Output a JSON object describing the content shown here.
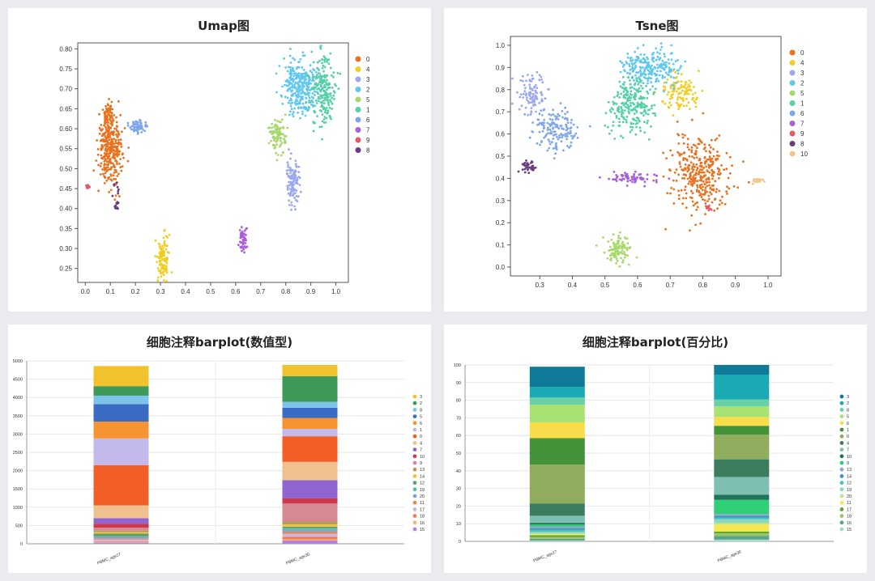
{
  "chart_data": [
    {
      "id": "umap",
      "type": "scatter",
      "title": "Umap图",
      "xlim": [
        -0.03,
        1.05
      ],
      "ylim": [
        0.215,
        0.815
      ],
      "xticks": [
        "0.0",
        "0.1",
        "0.2",
        "0.3",
        "0.4",
        "0.5",
        "0.6",
        "0.7",
        "0.8",
        "0.9",
        "1.0"
      ],
      "yticks": [
        "0.25",
        "0.30",
        "0.35",
        "0.40",
        "0.45",
        "0.50",
        "0.55",
        "0.60",
        "0.65",
        "0.70",
        "0.75",
        "0.80"
      ],
      "legend": [
        "0",
        "4",
        "3",
        "2",
        "5",
        "1",
        "6",
        "7",
        "9",
        "8"
      ],
      "colors": {
        "0": "#e8721f",
        "4": "#f0cd1e",
        "3": "#9aa9ef",
        "2": "#5fc8f0",
        "5": "#a6d86a",
        "1": "#55d0a8",
        "6": "#7fa6e8",
        "7": "#a95fd8",
        "9": "#e45a6a",
        "8": "#6a3d7f"
      },
      "clusters": [
        {
          "name": "0",
          "cx": 0.1,
          "cy": 0.555,
          "sx": 0.022,
          "sy": 0.045,
          "n": 330
        },
        {
          "name": "0",
          "cx": 0.09,
          "cy": 0.635,
          "sx": 0.01,
          "sy": 0.018,
          "n": 50
        },
        {
          "name": "4",
          "cx": 0.31,
          "cy": 0.275,
          "sx": 0.012,
          "sy": 0.03,
          "n": 110
        },
        {
          "name": "3",
          "cx": 0.83,
          "cy": 0.465,
          "sx": 0.013,
          "sy": 0.028,
          "n": 110
        },
        {
          "name": "2",
          "cx": 0.86,
          "cy": 0.705,
          "sx": 0.035,
          "sy": 0.035,
          "n": 290
        },
        {
          "name": "1",
          "cx": 0.95,
          "cy": 0.695,
          "sx": 0.025,
          "sy": 0.04,
          "n": 200
        },
        {
          "name": "5",
          "cx": 0.77,
          "cy": 0.58,
          "sx": 0.02,
          "sy": 0.025,
          "n": 90
        },
        {
          "name": "6",
          "cx": 0.21,
          "cy": 0.605,
          "sx": 0.02,
          "sy": 0.008,
          "n": 55
        },
        {
          "name": "7",
          "cx": 0.63,
          "cy": 0.32,
          "sx": 0.007,
          "sy": 0.014,
          "n": 55
        },
        {
          "name": "9",
          "cx": 0.01,
          "cy": 0.455,
          "sx": 0.006,
          "sy": 0.004,
          "n": 14
        },
        {
          "name": "8",
          "cx": 0.125,
          "cy": 0.43,
          "sx": 0.008,
          "sy": 0.02,
          "n": 18
        }
      ]
    },
    {
      "id": "tsne",
      "type": "scatter",
      "title": "Tsne图",
      "xlim": [
        0.21,
        1.04
      ],
      "ylim": [
        -0.04,
        1.04
      ],
      "xticks": [
        "0.3",
        "0.4",
        "0.5",
        "0.6",
        "0.7",
        "0.8",
        "0.9",
        "1.0"
      ],
      "yticks": [
        "0.0",
        "0.1",
        "0.2",
        "0.3",
        "0.4",
        "0.5",
        "0.6",
        "0.7",
        "0.8",
        "0.9",
        "1.0"
      ],
      "legend": [
        "0",
        "4",
        "3",
        "2",
        "5",
        "1",
        "6",
        "7",
        "9",
        "8",
        "10"
      ],
      "colors": {
        "0": "#e8721f",
        "4": "#f0cd1e",
        "3": "#9aa9ef",
        "2": "#5fc8f0",
        "5": "#a6d86a",
        "1": "#55d0a8",
        "6": "#7fa6e8",
        "7": "#a95fd8",
        "9": "#e45a6a",
        "8": "#6a3d7f",
        "10": "#f4c48a"
      },
      "clusters": [
        {
          "name": "0",
          "cx": 0.79,
          "cy": 0.42,
          "sx": 0.045,
          "sy": 0.08,
          "n": 330
        },
        {
          "name": "4",
          "cx": 0.73,
          "cy": 0.78,
          "sx": 0.03,
          "sy": 0.04,
          "n": 110
        },
        {
          "name": "3",
          "cx": 0.28,
          "cy": 0.78,
          "sx": 0.02,
          "sy": 0.05,
          "n": 90
        },
        {
          "name": "2",
          "cx": 0.64,
          "cy": 0.9,
          "sx": 0.045,
          "sy": 0.04,
          "n": 230
        },
        {
          "name": "5",
          "cx": 0.54,
          "cy": 0.08,
          "sx": 0.02,
          "sy": 0.03,
          "n": 100
        },
        {
          "name": "1",
          "cx": 0.58,
          "cy": 0.73,
          "sx": 0.035,
          "sy": 0.07,
          "n": 240
        },
        {
          "name": "6",
          "cx": 0.35,
          "cy": 0.62,
          "sx": 0.035,
          "sy": 0.05,
          "n": 150
        },
        {
          "name": "7",
          "cx": 0.59,
          "cy": 0.4,
          "sx": 0.04,
          "sy": 0.013,
          "n": 70
        },
        {
          "name": "9",
          "cx": 0.815,
          "cy": 0.27,
          "sx": 0.01,
          "sy": 0.01,
          "n": 12
        },
        {
          "name": "8",
          "cx": 0.265,
          "cy": 0.45,
          "sx": 0.015,
          "sy": 0.02,
          "n": 35
        },
        {
          "name": "10",
          "cx": 0.97,
          "cy": 0.39,
          "sx": 0.01,
          "sy": 0.008,
          "n": 18
        }
      ]
    },
    {
      "id": "bar1",
      "type": "bar",
      "title": "细胞注释barplot(数值型)",
      "categories": [
        "PBMC_age27",
        "PBMC_age30"
      ],
      "ylim": [
        0,
        5000
      ],
      "yticks": [
        "0",
        "500",
        "1000",
        "1500",
        "2000",
        "2500",
        "3000",
        "3500",
        "4000",
        "4500",
        "5000"
      ],
      "stack_order": [
        "15",
        "16",
        "18",
        "17",
        "11",
        "20",
        "19",
        "12",
        "14",
        "13",
        "9",
        "10",
        "7",
        "4",
        "0",
        "1",
        "6",
        "5",
        "8",
        "2",
        "3"
      ],
      "legend": [
        "3",
        "2",
        "8",
        "5",
        "6",
        "1",
        "0",
        "4",
        "7",
        "10",
        "9",
        "13",
        "14",
        "12",
        "19",
        "20",
        "11",
        "17",
        "18",
        "16",
        "15"
      ],
      "colors": {
        "3": "#f2c12e",
        "2": "#3f9a5a",
        "8": "#7dc4ea",
        "5": "#3b6cc3",
        "6": "#f79432",
        "1": "#c3b9eb",
        "0": "#f15f27",
        "4": "#f0c08e",
        "7": "#9065cf",
        "10": "#c93a4d",
        "9": "#d88892",
        "13": "#b79a63",
        "14": "#f5c23b",
        "12": "#5f9f6c",
        "19": "#59c09c",
        "20": "#7ba1df",
        "11": "#e9884b",
        "17": "#c8b7e8",
        "18": "#f47c52",
        "16": "#f6b77a",
        "15": "#b283d8"
      },
      "series": [
        {
          "name": "15",
          "values": [
            30,
            90
          ]
        },
        {
          "name": "16",
          "values": [
            20,
            30
          ]
        },
        {
          "name": "18",
          "values": [
            20,
            70
          ]
        },
        {
          "name": "17",
          "values": [
            50,
            80
          ]
        },
        {
          "name": "11",
          "values": [
            30,
            60
          ]
        },
        {
          "name": "20",
          "values": [
            40,
            60
          ]
        },
        {
          "name": "19",
          "values": [
            20,
            40
          ]
        },
        {
          "name": "12",
          "values": [
            70,
            40
          ]
        },
        {
          "name": "14",
          "values": [
            40,
            60
          ]
        },
        {
          "name": "13",
          "values": [
            40,
            90
          ]
        },
        {
          "name": "9",
          "values": [
            80,
            480
          ]
        },
        {
          "name": "10",
          "values": [
            110,
            140
          ]
        },
        {
          "name": "7",
          "values": [
            150,
            500
          ]
        },
        {
          "name": "4",
          "values": [
            350,
            500
          ]
        },
        {
          "name": "0",
          "values": [
            1100,
            700
          ]
        },
        {
          "name": "1",
          "values": [
            730,
            200
          ]
        },
        {
          "name": "6",
          "values": [
            460,
            300
          ]
        },
        {
          "name": "5",
          "values": [
            480,
            280
          ]
        },
        {
          "name": "8",
          "values": [
            230,
            160
          ]
        },
        {
          "name": "2",
          "values": [
            260,
            700
          ]
        },
        {
          "name": "3",
          "values": [
            550,
            310
          ]
        }
      ]
    },
    {
      "id": "bar2",
      "type": "bar",
      "title": "细胞注释barplot(百分比)",
      "categories": [
        "PBMC_age27",
        "PBMC_age30"
      ],
      "ylim": [
        0,
        100
      ],
      "yticks": [
        "0",
        "10",
        "20",
        "30",
        "40",
        "50",
        "60",
        "70",
        "80",
        "90",
        "100"
      ],
      "stack_order": [
        "15",
        "16",
        "18",
        "17",
        "11",
        "20",
        "19",
        "12",
        "14",
        "13",
        "9",
        "10",
        "7",
        "4",
        "0",
        "1",
        "6",
        "5",
        "8",
        "2",
        "3"
      ],
      "legend": [
        "3",
        "2",
        "8",
        "5",
        "6",
        "1",
        "0",
        "4",
        "7",
        "10",
        "9",
        "13",
        "14",
        "12",
        "19",
        "20",
        "11",
        "17",
        "18",
        "16",
        "15"
      ],
      "colors": {
        "3": "#0f7b99",
        "2": "#1aaab5",
        "8": "#69cfa4",
        "5": "#a8e272",
        "6": "#f9dc4a",
        "1": "#44923a",
        "0": "#8fad5d",
        "4": "#3c7d5e",
        "7": "#7fbfb2",
        "10": "#21745c",
        "9": "#2ecf76",
        "13": "#8fa6c8",
        "14": "#3c96bc",
        "12": "#42c2c1",
        "19": "#8fd6b9",
        "20": "#b9e490",
        "11": "#f5e74d",
        "17": "#59a836",
        "18": "#9dc26b",
        "16": "#58a585",
        "15": "#a2dbd3"
      },
      "series": [
        {
          "name": "15",
          "values": [
            0.5,
            1
          ]
        },
        {
          "name": "16",
          "values": [
            1,
            2
          ]
        },
        {
          "name": "18",
          "values": [
            1,
            1.5
          ]
        },
        {
          "name": "17",
          "values": [
            1,
            1
          ]
        },
        {
          "name": "11",
          "values": [
            0.5,
            4
          ]
        },
        {
          "name": "20",
          "values": [
            0.5,
            1
          ]
        },
        {
          "name": "19",
          "values": [
            1,
            2
          ]
        },
        {
          "name": "12",
          "values": [
            1,
            1
          ]
        },
        {
          "name": "14",
          "values": [
            1,
            1
          ]
        },
        {
          "name": "13",
          "values": [
            1,
            1
          ]
        },
        {
          "name": "9",
          "values": [
            1,
            8
          ]
        },
        {
          "name": "10",
          "values": [
            1,
            3
          ]
        },
        {
          "name": "7",
          "values": [
            4,
            10
          ]
        },
        {
          "name": "4",
          "values": [
            7,
            10
          ]
        },
        {
          "name": "0",
          "values": [
            22,
            14
          ]
        },
        {
          "name": "1",
          "values": [
            15,
            5
          ]
        },
        {
          "name": "6",
          "values": [
            9,
            5
          ]
        },
        {
          "name": "5",
          "values": [
            10,
            6
          ]
        },
        {
          "name": "8",
          "values": [
            4,
            4
          ]
        },
        {
          "name": "2",
          "values": [
            6,
            14
          ]
        },
        {
          "name": "3",
          "values": [
            11.5,
            5.5
          ]
        }
      ]
    }
  ]
}
